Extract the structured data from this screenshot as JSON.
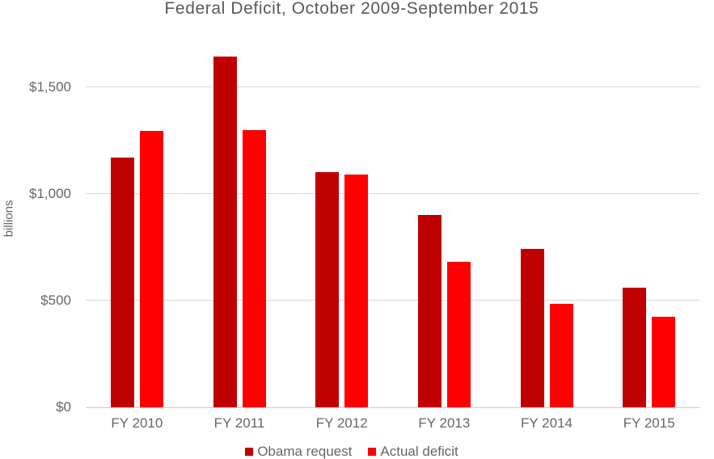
{
  "chart_data": {
    "type": "bar",
    "title": "Federal Deficit, October 2009-September 2015",
    "categories": [
      "FY 2010",
      "FY 2011",
      "FY 2012",
      "FY 2013",
      "FY 2014",
      "FY 2015"
    ],
    "series": [
      {
        "name": "Obama request",
        "color": "#c00000",
        "values": [
          1171,
          1645,
          1101,
          901,
          744,
          561
        ]
      },
      {
        "name": "Actual deficit",
        "color": "#ff0000",
        "values": [
          1294,
          1300,
          1090,
          680,
          483,
          425
        ]
      }
    ],
    "xlabel": "",
    "ylabel": "billions",
    "ylim": [
      0,
      1700
    ],
    "yticks": [
      {
        "value": 0,
        "label": "$0"
      },
      {
        "value": 500,
        "label": "$500"
      },
      {
        "value": 1000,
        "label": "$1,000"
      },
      {
        "value": 1500,
        "label": "$1,500"
      }
    ],
    "grid": true,
    "legend_position": "bottom"
  },
  "colors": {
    "grid": "#d9d9d9",
    "axis_line": "#cccccc",
    "text": "#666666",
    "title_text": "#595959",
    "background": "#ffffff"
  }
}
